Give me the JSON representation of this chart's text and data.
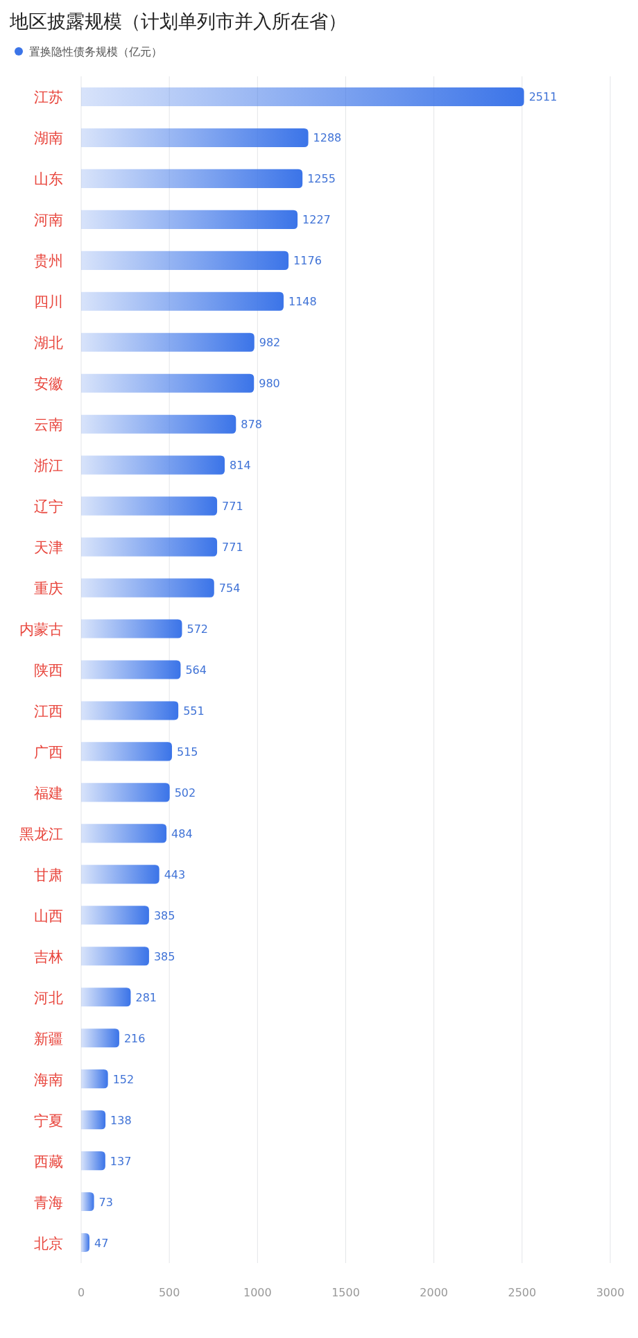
{
  "chart_data": {
    "type": "bar",
    "orientation": "horizontal",
    "title": "地区披露规模（计划单列市并入所在省）",
    "categories": [
      "江苏",
      "湖南",
      "山东",
      "河南",
      "贵州",
      "四川",
      "湖北",
      "安徽",
      "云南",
      "浙江",
      "辽宁",
      "天津",
      "重庆",
      "内蒙古",
      "陕西",
      "江西",
      "广西",
      "福建",
      "黑龙江",
      "甘肃",
      "山西",
      "吉林",
      "河北",
      "新疆",
      "海南",
      "宁夏",
      "西藏",
      "青海",
      "北京"
    ],
    "series": [
      {
        "name": "置换隐性债务规模（亿元）",
        "color": "#3b74e8",
        "values": [
          2511,
          1288,
          1255,
          1227,
          1176,
          1148,
          982,
          980,
          878,
          814,
          771,
          771,
          754,
          572,
          564,
          551,
          515,
          502,
          484,
          443,
          385,
          385,
          281,
          216,
          152,
          138,
          137,
          73,
          47
        ]
      }
    ],
    "xlim": [
      0,
      3000
    ],
    "xticks": [
      0,
      500,
      1000,
      1500,
      2000,
      2500,
      3000
    ],
    "grid": "x",
    "legend": "top left",
    "data_labels": true
  }
}
